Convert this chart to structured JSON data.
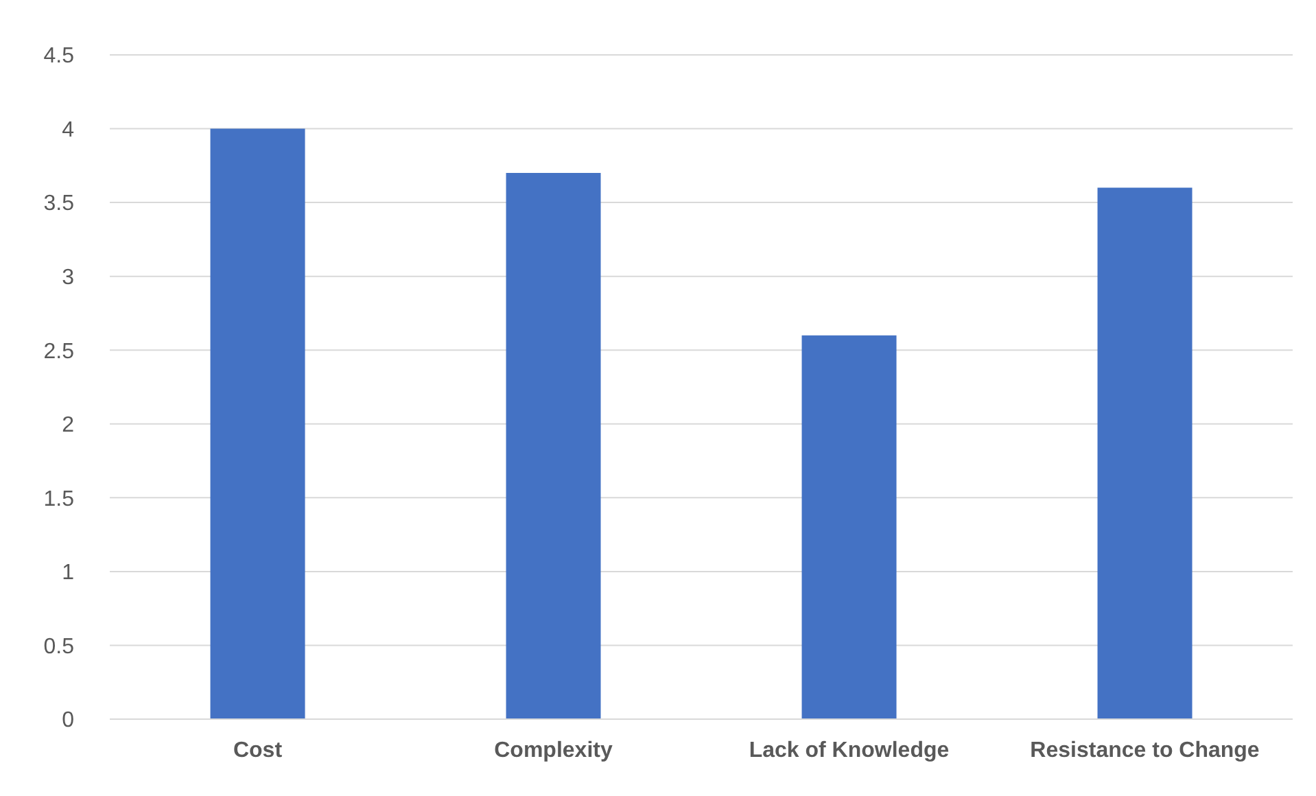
{
  "chart_data": {
    "type": "bar",
    "categories": [
      "Cost",
      "Complexity",
      "Lack of Knowledge",
      "Resistance to Change"
    ],
    "values": [
      4,
      3.7,
      2.6,
      3.6
    ],
    "color": "#4472c4",
    "ylim": [
      0,
      4.5
    ],
    "yticks": [
      0,
      0.5,
      1,
      1.5,
      2,
      2.5,
      3,
      3.5,
      4,
      4.5
    ],
    "grid": "y"
  }
}
